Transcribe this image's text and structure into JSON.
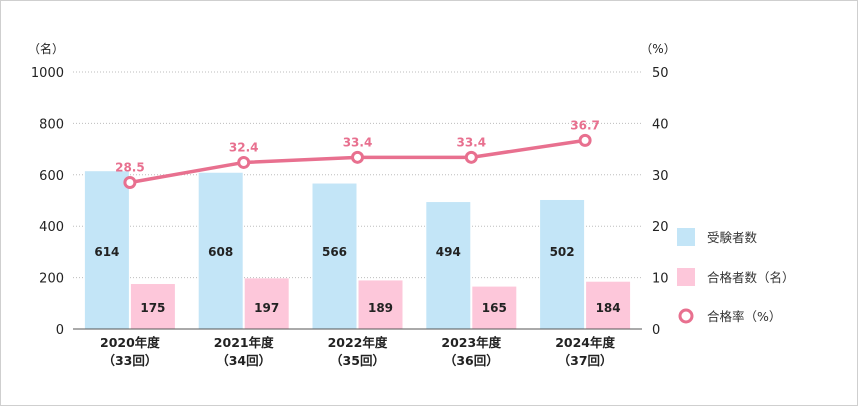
{
  "chart_data": {
    "type": "bar",
    "y_left_unit": "（名）",
    "y_right_unit": "（%）",
    "ylim_left": [
      0,
      1000
    ],
    "ylim_right": [
      0,
      50
    ],
    "yticks_left": [
      "0",
      "200",
      "400",
      "600",
      "800",
      "1000"
    ],
    "yticks_right": [
      "0",
      "10",
      "20",
      "30",
      "40",
      "50"
    ],
    "categories": [
      {
        "line1": "2020年度",
        "line2": "（33回）"
      },
      {
        "line1": "2021年度",
        "line2": "（34回）"
      },
      {
        "line1": "2022年度",
        "line2": "（35回）"
      },
      {
        "line1": "2023年度",
        "line2": "（36回）"
      },
      {
        "line1": "2024年度",
        "line2": "（37回）"
      }
    ],
    "series": [
      {
        "name": "受験者数",
        "type": "bar",
        "axis": "left",
        "color": "#c3e5f7",
        "values": [
          614,
          608,
          566,
          494,
          502
        ]
      },
      {
        "name": "合格者数（名）",
        "type": "bar",
        "axis": "left",
        "color": "#fdc7da",
        "values": [
          175,
          197,
          189,
          165,
          184
        ]
      },
      {
        "name": "合格率（%）",
        "type": "line",
        "axis": "right",
        "color": "#e8708f",
        "values": [
          28.5,
          32.4,
          33.4,
          33.4,
          36.7
        ],
        "labels": [
          "28.5",
          "32.4",
          "33.4",
          "33.4",
          "36.7"
        ]
      }
    ],
    "grid": true,
    "legend_position": "right"
  }
}
